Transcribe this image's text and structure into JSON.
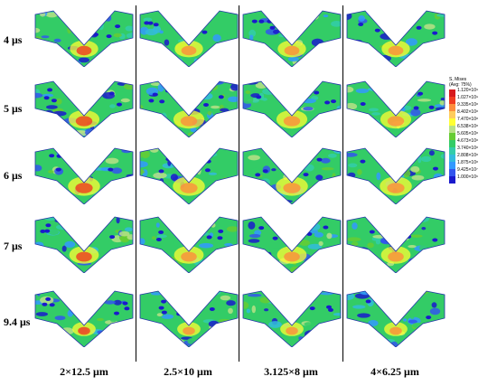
{
  "rows": [
    {
      "label": "4 μs",
      "level": 0.55
    },
    {
      "label": "5 μs",
      "level": 0.65
    },
    {
      "label": "6 μs",
      "level": 0.7
    },
    {
      "label": "7 μs",
      "level": 0.6
    },
    {
      "label": "9.4 μs",
      "level": 0.35
    }
  ],
  "columns": [
    {
      "label": "2×12.5 μm"
    },
    {
      "label": "2.5×10 μm"
    },
    {
      "label": "3.125×8 μm"
    },
    {
      "label": "4×6.25 μm"
    }
  ],
  "legend": {
    "title_line1": "S, Mises",
    "title_line2": "(Avg: 75%)",
    "ticks": [
      "1.120×10⁹",
      "1.027×10⁹",
      "9.335×10⁸",
      "8.402×10⁸",
      "7.470×10⁸",
      "6.538×10⁸",
      "5.605×10⁸",
      "4.673×10⁸",
      "3.740×10⁸",
      "2.808×10⁸",
      "1.875×10⁸",
      "9.425×10⁷",
      "1.000×10⁶"
    ],
    "colors": [
      "#d7191c",
      "#f03b20",
      "#fd8d3c",
      "#fecc5c",
      "#ffff33",
      "#b8e186",
      "#66cc33",
      "#33cc66",
      "#33ccaa",
      "#33bbdd",
      "#3399ff",
      "#3355ee",
      "#1a1acc"
    ]
  }
}
